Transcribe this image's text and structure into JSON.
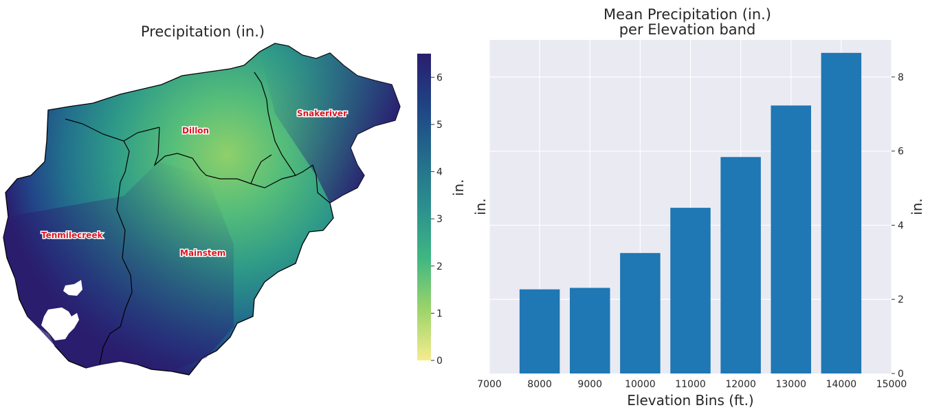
{
  "map": {
    "title": "Precipitation (in.)",
    "colorbar": {
      "label": "in.",
      "min": 0,
      "max": 6.5,
      "ticks": [
        "0",
        "1",
        "2",
        "3",
        "4",
        "5",
        "6"
      ],
      "colors": [
        "#f6ec8e",
        "#9bd46a",
        "#3fb782",
        "#2b8f8e",
        "#236b8c",
        "#1f4384",
        "#2a1d6e"
      ]
    },
    "regions": [
      {
        "name": "Dillon"
      },
      {
        "name": "Snakeriver"
      },
      {
        "name": "Tenmilecreek"
      },
      {
        "name": "Mainstem"
      }
    ]
  },
  "chart_data": {
    "type": "bar",
    "title": "Mean Precipitation (in.)",
    "subtitle": "per Elevation band",
    "xlabel": "Elevation Bins (ft.)",
    "ylabel_left": "in.",
    "ylabel_right": "in.",
    "xlim": [
      7000,
      15000
    ],
    "ylim": [
      0,
      9
    ],
    "xticks": [
      7000,
      8000,
      9000,
      10000,
      11000,
      12000,
      13000,
      14000,
      15000
    ],
    "yticks": [
      0,
      2,
      4,
      6,
      8
    ],
    "categories": [
      8000,
      9000,
      10000,
      11000,
      12000,
      13000,
      14000
    ],
    "values": [
      2.27,
      2.31,
      3.25,
      4.47,
      5.84,
      7.23,
      8.65
    ],
    "bar_width": 800,
    "bar_color": "#1f77b4",
    "grid": true,
    "background": "#eaeaf2"
  }
}
